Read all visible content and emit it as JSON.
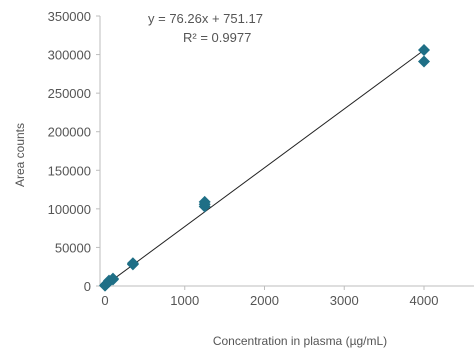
{
  "chart_data": {
    "type": "scatter",
    "xlabel": "Concentration in plasma (µg/mL)",
    "ylabel": "Area counts",
    "xlim": [
      -100,
      4600
    ],
    "ylim": [
      0,
      350000
    ],
    "x_ticks": [
      0,
      1000,
      2000,
      3000,
      4000
    ],
    "y_ticks": [
      0,
      50000,
      100000,
      150000,
      200000,
      250000,
      300000,
      350000
    ],
    "x_tick_labels": [
      "0",
      "1000",
      "2000",
      "3000",
      "4000"
    ],
    "y_tick_labels": [
      "0",
      "50000",
      "100000",
      "150000",
      "200000",
      "250000",
      "300000",
      "350000"
    ],
    "grid": false,
    "marker_color": "#1f6f86",
    "series": [
      {
        "x": [
          0,
          5,
          10,
          25,
          50,
          50,
          100,
          100,
          350,
          350,
          1250,
          1250,
          1250,
          4000,
          4000
        ],
        "y": [
          500,
          1200,
          2000,
          3500,
          5500,
          7000,
          8500,
          9500,
          28000,
          29500,
          103000,
          106000,
          109000,
          291000,
          306000
        ]
      }
    ],
    "trendline": {
      "slope": 76.26,
      "intercept": 751.17,
      "x_range": [
        -30,
        4000
      ],
      "equation": "y = 76.26x + 751.17",
      "r2": "R² = 0.9977"
    }
  }
}
